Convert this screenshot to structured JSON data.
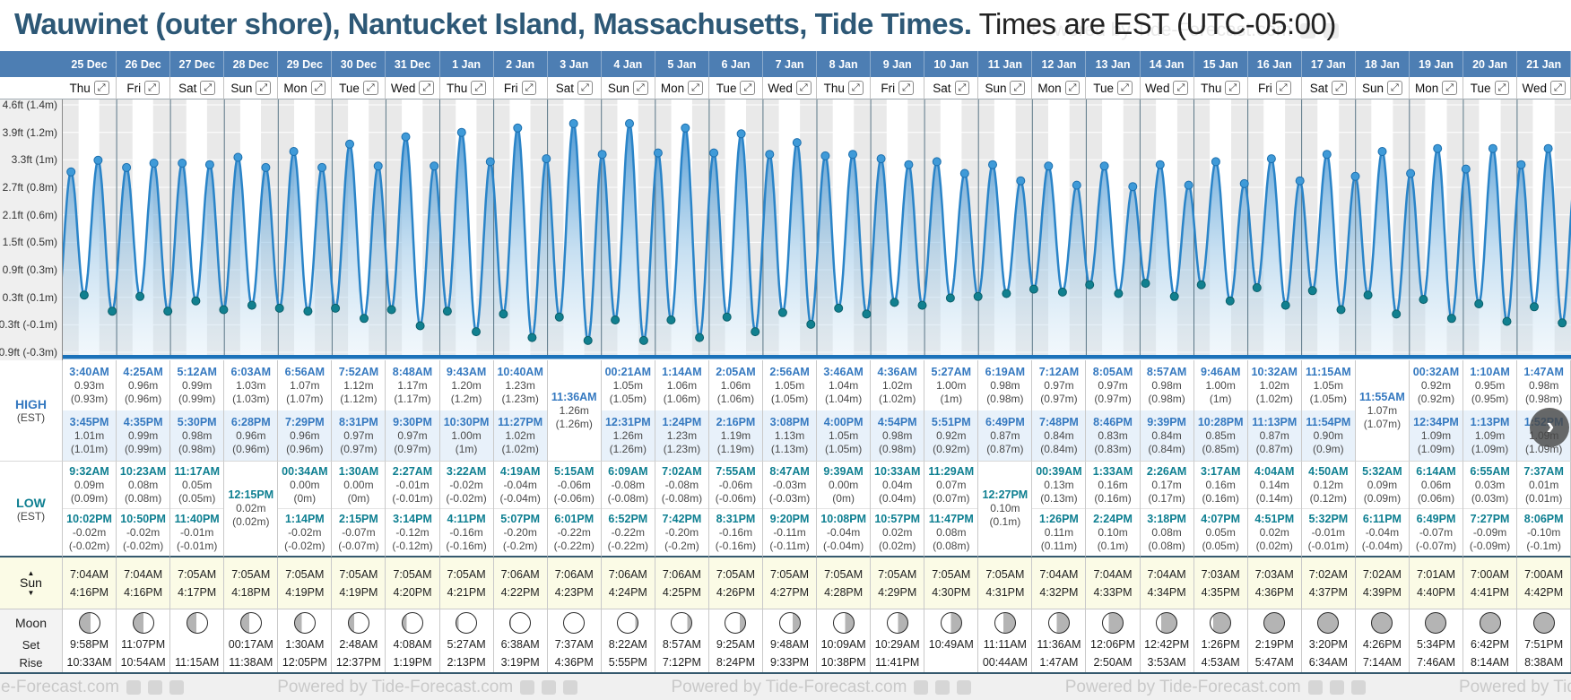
{
  "header": {
    "location_title": "Wauwinet (outer shore), Nantucket Island, Massachusetts, Tide Times.",
    "timezone_title": " Times are EST (UTC-05:00)"
  },
  "nav": {
    "next_icon": "›"
  },
  "watermark": "Powered by Tide-Forecast.com",
  "icons": {
    "expand": "⤢",
    "sun_up": "▲",
    "sun_down": "▼"
  },
  "axis": {
    "labels": [
      "4.6ft (1.4m)",
      "3.9ft (1.2m)",
      "3.3ft (1m)",
      "2.7ft (0.8m)",
      "2.1ft (0.6m)",
      "1.5ft (0.5m)",
      "0.9ft (0.3m)",
      "0.3ft (0.1m)",
      "-0.3ft (-0.1m)",
      "-0.9ft (-0.3m)"
    ]
  },
  "row_labels": {
    "high": "HIGH",
    "high_tz": "(EST)",
    "low": "LOW",
    "low_tz": "(EST)",
    "sun": "Sun",
    "moon": "Moon",
    "set": "Set",
    "rise": "Rise"
  },
  "days": [
    {
      "date": "25 Dec",
      "dow": "Thu",
      "sun_rise": "7:04AM",
      "sun_set": "4:16PM",
      "moon": {
        "gray_side": "left",
        "gray_pct": 55
      },
      "moon_set": "9:58PM",
      "moon_rise": "10:33AM"
    },
    {
      "date": "26 Dec",
      "dow": "Fri",
      "sun_rise": "7:04AM",
      "sun_set": "4:16PM",
      "moon": {
        "gray_side": "left",
        "gray_pct": 50
      },
      "moon_set": "11:07PM",
      "moon_rise": "10:54AM"
    },
    {
      "date": "27 Dec",
      "dow": "Sat",
      "sun_rise": "7:05AM",
      "sun_set": "4:17PM",
      "moon": {
        "gray_side": "left",
        "gray_pct": 46
      },
      "moon_set": "",
      "moon_rise": "11:15AM"
    },
    {
      "date": "28 Dec",
      "dow": "Sun",
      "sun_rise": "7:05AM",
      "sun_set": "4:18PM",
      "moon": {
        "gray_side": "left",
        "gray_pct": 40
      },
      "moon_set": "00:17AM",
      "moon_rise": "11:38AM"
    },
    {
      "date": "29 Dec",
      "dow": "Mon",
      "sun_rise": "7:05AM",
      "sun_set": "4:19PM",
      "moon": {
        "gray_side": "left",
        "gray_pct": 33
      },
      "moon_set": "1:30AM",
      "moon_rise": "12:05PM"
    },
    {
      "date": "30 Dec",
      "dow": "Tue",
      "sun_rise": "7:05AM",
      "sun_set": "4:19PM",
      "moon": {
        "gray_side": "left",
        "gray_pct": 27
      },
      "moon_set": "2:48AM",
      "moon_rise": "12:37PM"
    },
    {
      "date": "31 Dec",
      "dow": "Wed",
      "sun_rise": "7:05AM",
      "sun_set": "4:20PM",
      "moon": {
        "gray_side": "left",
        "gray_pct": 20
      },
      "moon_set": "4:08AM",
      "moon_rise": "1:19PM"
    },
    {
      "date": "1 Jan",
      "dow": "Thu",
      "sun_rise": "7:05AM",
      "sun_set": "4:21PM",
      "moon": {
        "gray_side": "left",
        "gray_pct": 12
      },
      "moon_set": "5:27AM",
      "moon_rise": "2:13PM"
    },
    {
      "date": "2 Jan",
      "dow": "Fri",
      "sun_rise": "7:06AM",
      "sun_set": "4:22PM",
      "moon": {
        "gray_side": "left",
        "gray_pct": 5
      },
      "moon_set": "6:38AM",
      "moon_rise": "3:19PM"
    },
    {
      "date": "3 Jan",
      "dow": "Sat",
      "sun_rise": "7:06AM",
      "sun_set": "4:23PM",
      "moon": {
        "gray_side": "none",
        "gray_pct": 0
      },
      "moon_set": "7:37AM",
      "moon_rise": "4:36PM"
    },
    {
      "date": "4 Jan",
      "dow": "Sun",
      "sun_rise": "7:06AM",
      "sun_set": "4:24PM",
      "moon": {
        "gray_side": "right",
        "gray_pct": 12
      },
      "moon_set": "8:22AM",
      "moon_rise": "5:55PM"
    },
    {
      "date": "5 Jan",
      "dow": "Mon",
      "sun_rise": "7:06AM",
      "sun_set": "4:25PM",
      "moon": {
        "gray_side": "right",
        "gray_pct": 20
      },
      "moon_set": "8:57AM",
      "moon_rise": "7:12PM"
    },
    {
      "date": "6 Jan",
      "dow": "Tue",
      "sun_rise": "7:05AM",
      "sun_set": "4:26PM",
      "moon": {
        "gray_side": "right",
        "gray_pct": 28
      },
      "moon_set": "9:25AM",
      "moon_rise": "8:24PM"
    },
    {
      "date": "7 Jan",
      "dow": "Wed",
      "sun_rise": "7:05AM",
      "sun_set": "4:27PM",
      "moon": {
        "gray_side": "right",
        "gray_pct": 36
      },
      "moon_set": "9:48AM",
      "moon_rise": "9:33PM"
    },
    {
      "date": "8 Jan",
      "dow": "Thu",
      "sun_rise": "7:05AM",
      "sun_set": "4:28PM",
      "moon": {
        "gray_side": "right",
        "gray_pct": 43
      },
      "moon_set": "10:09AM",
      "moon_rise": "10:38PM"
    },
    {
      "date": "9 Jan",
      "dow": "Fri",
      "sun_rise": "7:05AM",
      "sun_set": "4:29PM",
      "moon": {
        "gray_side": "right",
        "gray_pct": 48
      },
      "moon_set": "10:29AM",
      "moon_rise": "11:41PM"
    },
    {
      "date": "10 Jan",
      "dow": "Sat",
      "sun_rise": "7:05AM",
      "sun_set": "4:30PM",
      "moon": {
        "gray_side": "right",
        "gray_pct": 53
      },
      "moon_set": "10:49AM",
      "moon_rise": ""
    },
    {
      "date": "11 Jan",
      "dow": "Sun",
      "sun_rise": "7:05AM",
      "sun_set": "4:31PM",
      "moon": {
        "gray_side": "right",
        "gray_pct": 58
      },
      "moon_set": "11:11AM",
      "moon_rise": "00:44AM"
    },
    {
      "date": "12 Jan",
      "dow": "Mon",
      "sun_rise": "7:04AM",
      "sun_set": "4:32PM",
      "moon": {
        "gray_side": "right",
        "gray_pct": 62
      },
      "moon_set": "11:36AM",
      "moon_rise": "1:47AM"
    },
    {
      "date": "13 Jan",
      "dow": "Tue",
      "sun_rise": "7:04AM",
      "sun_set": "4:33PM",
      "moon": {
        "gray_side": "right",
        "gray_pct": 70
      },
      "moon_set": "12:06PM",
      "moon_rise": "2:50AM"
    },
    {
      "date": "14 Jan",
      "dow": "Wed",
      "sun_rise": "7:04AM",
      "sun_set": "4:34PM",
      "moon": {
        "gray_side": "right",
        "gray_pct": 78
      },
      "moon_set": "12:42PM",
      "moon_rise": "3:53AM"
    },
    {
      "date": "15 Jan",
      "dow": "Thu",
      "sun_rise": "7:03AM",
      "sun_set": "4:35PM",
      "moon": {
        "gray_side": "right",
        "gray_pct": 86
      },
      "moon_set": "1:26PM",
      "moon_rise": "4:53AM"
    },
    {
      "date": "16 Jan",
      "dow": "Fri",
      "sun_rise": "7:03AM",
      "sun_set": "4:36PM",
      "moon": {
        "gray_side": "all",
        "gray_pct": 100
      },
      "moon_set": "2:19PM",
      "moon_rise": "5:47AM"
    },
    {
      "date": "17 Jan",
      "dow": "Sat",
      "sun_rise": "7:02AM",
      "sun_set": "4:37PM",
      "moon": {
        "gray_side": "all",
        "gray_pct": 100
      },
      "moon_set": "3:20PM",
      "moon_rise": "6:34AM"
    },
    {
      "date": "18 Jan",
      "dow": "Sun",
      "sun_rise": "7:02AM",
      "sun_set": "4:39PM",
      "moon": {
        "gray_side": "all",
        "gray_pct": 100
      },
      "moon_set": "4:26PM",
      "moon_rise": "7:14AM"
    },
    {
      "date": "19 Jan",
      "dow": "Mon",
      "sun_rise": "7:01AM",
      "sun_set": "4:40PM",
      "moon": {
        "gray_side": "all",
        "gray_pct": 100
      },
      "moon_set": "5:34PM",
      "moon_rise": "7:46AM"
    },
    {
      "date": "20 Jan",
      "dow": "Tue",
      "sun_rise": "7:00AM",
      "sun_set": "4:41PM",
      "moon": {
        "gray_side": "all",
        "gray_pct": 100
      },
      "moon_set": "6:42PM",
      "moon_rise": "8:14AM"
    },
    {
      "date": "21 Jan",
      "dow": "Wed",
      "sun_rise": "7:00AM",
      "sun_set": "4:42PM",
      "moon": {
        "gray_side": "all",
        "gray_pct": 100
      },
      "moon_set": "7:51PM",
      "moon_rise": "8:38AM"
    }
  ],
  "chart_data": {
    "type": "area",
    "series_name": "Tide height (m), EST",
    "unit": "m",
    "ylim_m": [
      -0.38,
      1.45
    ],
    "x_range": "25 Dec - 21 Jan, one column per day",
    "note": "curve is cosine interpolation between high/low tide extremes; gray bands are night (before sunrise / after sunset)",
    "days": [
      {
        "date": "25 Dec",
        "high": [
          [
            "3:40AM",
            0.93
          ],
          [
            "3:45PM",
            1.01
          ]
        ],
        "low": [
          [
            "9:32AM",
            0.09
          ],
          [
            "10:02PM",
            -0.02
          ]
        ]
      },
      {
        "date": "26 Dec",
        "high": [
          [
            "4:25AM",
            0.96
          ],
          [
            "4:35PM",
            0.99
          ]
        ],
        "low": [
          [
            "10:23AM",
            0.08
          ],
          [
            "10:50PM",
            -0.02
          ]
        ]
      },
      {
        "date": "27 Dec",
        "high": [
          [
            "5:12AM",
            0.99
          ],
          [
            "5:30PM",
            0.98
          ]
        ],
        "low": [
          [
            "11:17AM",
            0.05
          ],
          [
            "11:40PM",
            -0.01
          ]
        ]
      },
      {
        "date": "28 Dec",
        "high": [
          [
            "6:03AM",
            1.03
          ],
          [
            "6:28PM",
            0.96
          ]
        ],
        "low": [
          [
            "12:15PM",
            0.02
          ]
        ]
      },
      {
        "date": "29 Dec",
        "high": [
          [
            "6:56AM",
            1.07
          ],
          [
            "7:29PM",
            0.96
          ]
        ],
        "low": [
          [
            "00:34AM",
            0
          ],
          [
            "1:14PM",
            -0.02
          ]
        ]
      },
      {
        "date": "30 Dec",
        "high": [
          [
            "7:52AM",
            1.12
          ],
          [
            "8:31PM",
            0.97
          ]
        ],
        "low": [
          [
            "1:30AM",
            0
          ],
          [
            "2:15PM",
            -0.07
          ]
        ]
      },
      {
        "date": "31 Dec",
        "high": [
          [
            "8:48AM",
            1.17
          ],
          [
            "9:30PM",
            0.97
          ]
        ],
        "low": [
          [
            "2:27AM",
            -0.01
          ],
          [
            "3:14PM",
            -0.12
          ]
        ]
      },
      {
        "date": "1 Jan",
        "high": [
          [
            "9:43AM",
            1.2
          ],
          [
            "10:30PM",
            1.0
          ]
        ],
        "low": [
          [
            "3:22AM",
            -0.02
          ],
          [
            "4:11PM",
            -0.16
          ]
        ]
      },
      {
        "date": "2 Jan",
        "high": [
          [
            "10:40AM",
            1.23
          ],
          [
            "11:27PM",
            1.02
          ]
        ],
        "low": [
          [
            "4:19AM",
            -0.04
          ],
          [
            "5:07PM",
            -0.2
          ]
        ]
      },
      {
        "date": "3 Jan",
        "high": [
          [
            "11:36AM",
            1.26
          ]
        ],
        "low": [
          [
            "5:15AM",
            -0.06
          ],
          [
            "6:01PM",
            -0.22
          ]
        ]
      },
      {
        "date": "4 Jan",
        "high": [
          [
            "00:21AM",
            1.05
          ],
          [
            "12:31PM",
            1.26
          ]
        ],
        "low": [
          [
            "6:09AM",
            -0.08
          ],
          [
            "6:52PM",
            -0.22
          ]
        ]
      },
      {
        "date": "5 Jan",
        "high": [
          [
            "1:14AM",
            1.06
          ],
          [
            "1:24PM",
            1.23
          ]
        ],
        "low": [
          [
            "7:02AM",
            -0.08
          ],
          [
            "7:42PM",
            -0.2
          ]
        ]
      },
      {
        "date": "6 Jan",
        "high": [
          [
            "2:05AM",
            1.06
          ],
          [
            "2:16PM",
            1.19
          ]
        ],
        "low": [
          [
            "7:55AM",
            -0.06
          ],
          [
            "8:31PM",
            -0.16
          ]
        ]
      },
      {
        "date": "7 Jan",
        "high": [
          [
            "2:56AM",
            1.05
          ],
          [
            "3:08PM",
            1.13
          ]
        ],
        "low": [
          [
            "8:47AM",
            -0.03
          ],
          [
            "9:20PM",
            -0.11
          ]
        ]
      },
      {
        "date": "8 Jan",
        "high": [
          [
            "3:46AM",
            1.04
          ],
          [
            "4:00PM",
            1.05
          ]
        ],
        "low": [
          [
            "9:39AM",
            0
          ],
          [
            "10:08PM",
            -0.04
          ]
        ]
      },
      {
        "date": "9 Jan",
        "high": [
          [
            "4:36AM",
            1.02
          ],
          [
            "4:54PM",
            0.98
          ]
        ],
        "low": [
          [
            "10:33AM",
            0.04
          ],
          [
            "10:57PM",
            0.02
          ]
        ]
      },
      {
        "date": "10 Jan",
        "high": [
          [
            "5:27AM",
            1.0
          ],
          [
            "5:51PM",
            0.92
          ]
        ],
        "low": [
          [
            "11:29AM",
            0.07
          ],
          [
            "11:47PM",
            0.08
          ]
        ]
      },
      {
        "date": "11 Jan",
        "high": [
          [
            "6:19AM",
            0.98
          ],
          [
            "6:49PM",
            0.87
          ]
        ],
        "low": [
          [
            "12:27PM",
            0.1
          ]
        ]
      },
      {
        "date": "12 Jan",
        "high": [
          [
            "7:12AM",
            0.97
          ],
          [
            "7:48PM",
            0.84
          ]
        ],
        "low": [
          [
            "00:39AM",
            0.13
          ],
          [
            "1:26PM",
            0.11
          ]
        ]
      },
      {
        "date": "13 Jan",
        "high": [
          [
            "8:05AM",
            0.97
          ],
          [
            "8:46PM",
            0.83
          ]
        ],
        "low": [
          [
            "1:33AM",
            0.16
          ],
          [
            "2:24PM",
            0.1
          ]
        ]
      },
      {
        "date": "14 Jan",
        "high": [
          [
            "8:57AM",
            0.98
          ],
          [
            "9:39PM",
            0.84
          ]
        ],
        "low": [
          [
            "2:26AM",
            0.17
          ],
          [
            "3:18PM",
            0.08
          ]
        ]
      },
      {
        "date": "15 Jan",
        "high": [
          [
            "9:46AM",
            1.0
          ],
          [
            "10:28PM",
            0.85
          ]
        ],
        "low": [
          [
            "3:17AM",
            0.16
          ],
          [
            "4:07PM",
            0.05
          ]
        ]
      },
      {
        "date": "16 Jan",
        "high": [
          [
            "10:32AM",
            1.02
          ],
          [
            "11:13PM",
            0.87
          ]
        ],
        "low": [
          [
            "4:04AM",
            0.14
          ],
          [
            "4:51PM",
            0.02
          ]
        ]
      },
      {
        "date": "17 Jan",
        "high": [
          [
            "11:15AM",
            1.05
          ],
          [
            "11:54PM",
            0.9
          ]
        ],
        "low": [
          [
            "4:50AM",
            0.12
          ],
          [
            "5:32PM",
            -0.01
          ]
        ]
      },
      {
        "date": "18 Jan",
        "high": [
          [
            "11:55AM",
            1.07
          ]
        ],
        "low": [
          [
            "5:32AM",
            0.09
          ],
          [
            "6:11PM",
            -0.04
          ]
        ]
      },
      {
        "date": "19 Jan",
        "high": [
          [
            "00:32AM",
            0.92
          ],
          [
            "12:34PM",
            1.09
          ]
        ],
        "low": [
          [
            "6:14AM",
            0.06
          ],
          [
            "6:49PM",
            -0.07
          ]
        ]
      },
      {
        "date": "20 Jan",
        "high": [
          [
            "1:10AM",
            0.95
          ],
          [
            "1:13PM",
            1.09
          ]
        ],
        "low": [
          [
            "6:55AM",
            0.03
          ],
          [
            "7:27PM",
            -0.09
          ]
        ]
      },
      {
        "date": "21 Jan",
        "high": [
          [
            "1:47AM",
            0.98
          ],
          [
            "1:52PM",
            1.09
          ]
        ],
        "low": [
          [
            "7:37AM",
            0.01
          ],
          [
            "8:06PM",
            -0.1
          ]
        ]
      }
    ]
  }
}
